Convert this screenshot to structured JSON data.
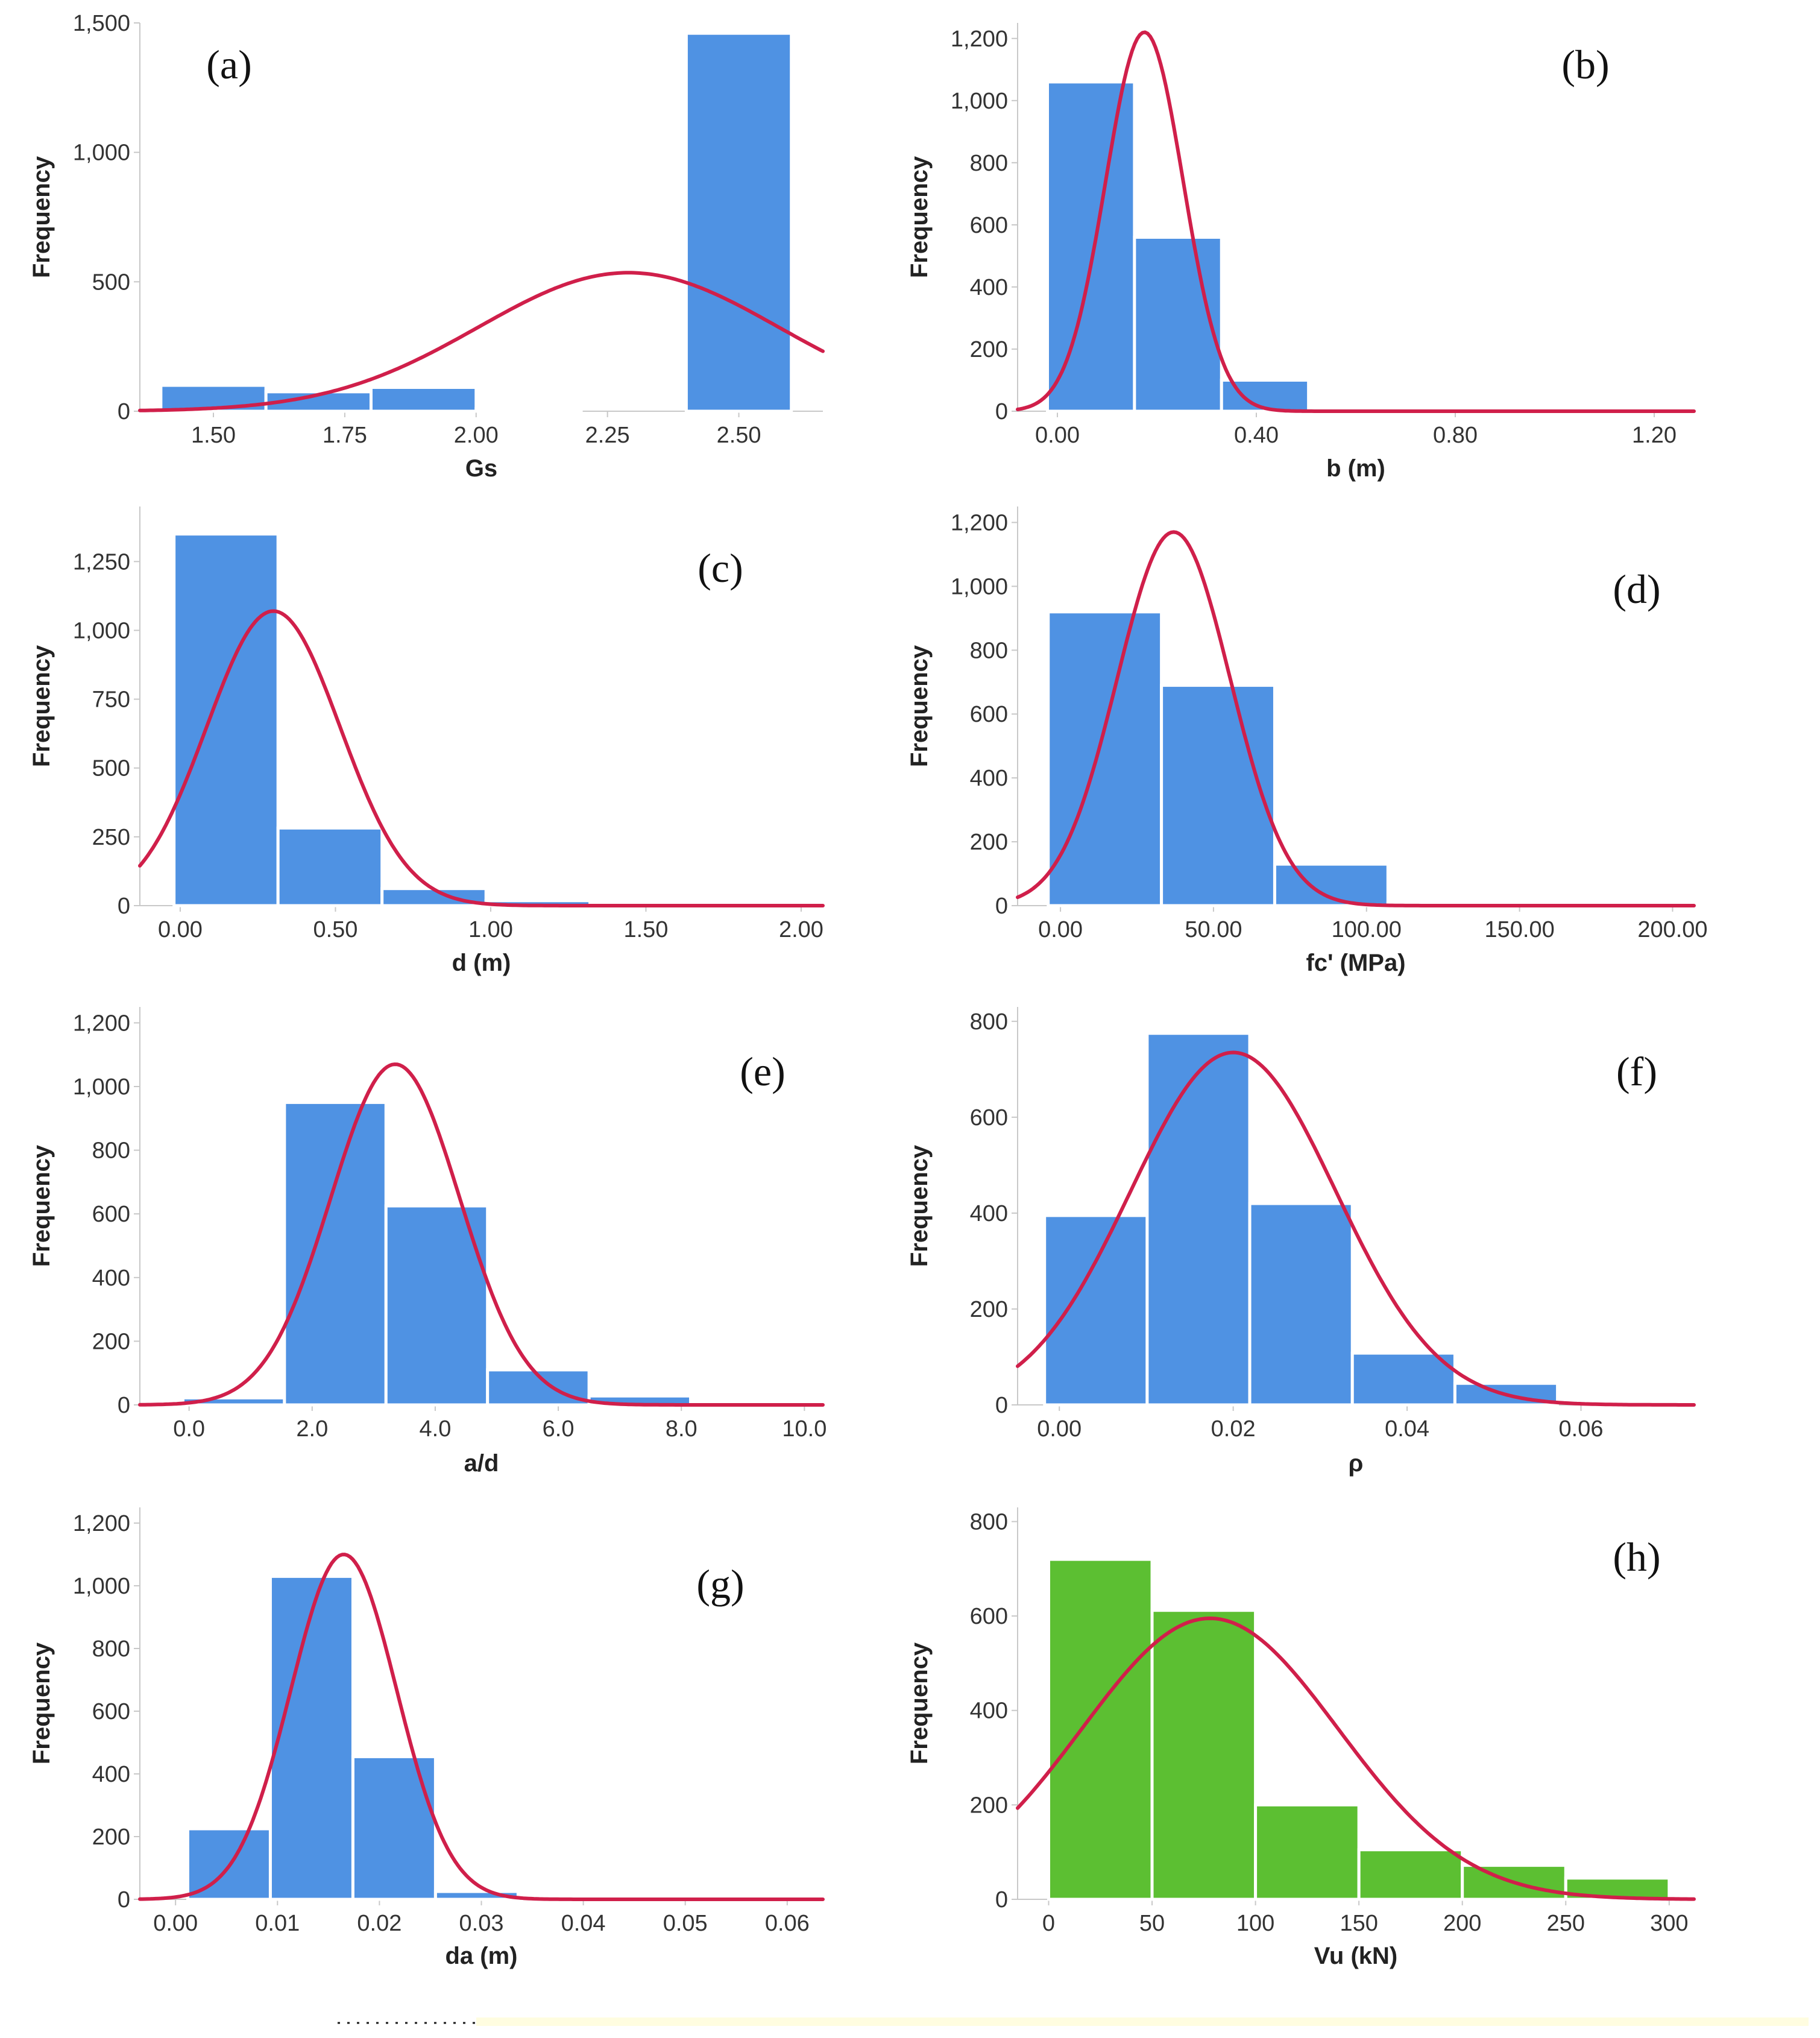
{
  "colors": {
    "bar_blue": "#4f92e3",
    "bar_green": "#5cbf32",
    "curve": "#d01f4a",
    "axis": "#c8c8c8",
    "footer_line": "#fffde0"
  },
  "chart_data": [
    {
      "id": "a",
      "type": "bar",
      "panel_label": "(a)",
      "xlabel": "Gs",
      "ylabel": "Frequency",
      "xlim": [
        1.36,
        2.66
      ],
      "ylim": [
        0,
        1500
      ],
      "xticks": [
        1.5,
        1.75,
        2.0,
        2.25,
        2.5
      ],
      "xtick_labels": [
        "1.50",
        "1.75",
        "2.00",
        "2.25",
        "2.50"
      ],
      "yticks": [
        0,
        500,
        1000,
        1500
      ],
      "ytick_labels": [
        "0",
        "500",
        "1,000",
        "1,500"
      ],
      "bins": [
        [
          1.4,
          1.6
        ],
        [
          1.6,
          1.8
        ],
        [
          1.8,
          2.0
        ],
        [
          2.0,
          2.2
        ],
        [
          2.2,
          2.4
        ],
        [
          2.4,
          2.6
        ]
      ],
      "values": [
        100,
        75,
        92,
        10,
        0,
        1460
      ],
      "normal_curve": {
        "mean": 2.29,
        "sd": 0.286,
        "peak": 535
      }
    },
    {
      "id": "b",
      "type": "bar",
      "panel_label": "(b)",
      "xlabel": "b (m)",
      "ylabel": "Frequency",
      "xlim": [
        -0.08,
        1.28
      ],
      "ylim": [
        0,
        1250
      ],
      "xticks": [
        0.0,
        0.4,
        0.8,
        1.2
      ],
      "xtick_labels": [
        "0.00",
        "0.40",
        "0.80",
        "1.20"
      ],
      "yticks": [
        0,
        200,
        400,
        600,
        800,
        1000,
        1200
      ],
      "ytick_labels": [
        "0",
        "200",
        "400",
        "600",
        "800",
        "1,000",
        "1,200"
      ],
      "bins": [
        [
          -0.02,
          0.155
        ],
        [
          0.155,
          0.33
        ],
        [
          0.33,
          0.505
        ]
      ],
      "values": [
        1060,
        560,
        100
      ],
      "normal_curve": {
        "mean": 0.175,
        "sd": 0.078,
        "peak": 1220
      }
    },
    {
      "id": "c",
      "type": "bar",
      "panel_label": "(c)",
      "xlabel": "d (m)",
      "ylabel": "Frequency",
      "xlim": [
        -0.13,
        2.07
      ],
      "ylim": [
        0,
        1450
      ],
      "xticks": [
        0.0,
        0.5,
        1.0,
        1.5,
        2.0
      ],
      "xtick_labels": [
        "0.00",
        "0.50",
        "1.00",
        "1.50",
        "2.00"
      ],
      "yticks": [
        0,
        250,
        500,
        750,
        1000,
        1250
      ],
      "ytick_labels": [
        "0",
        "250",
        "500",
        "750",
        "1,000",
        "1,250"
      ],
      "bins": [
        [
          -0.02,
          0.315
        ],
        [
          0.315,
          0.65
        ],
        [
          0.65,
          0.985
        ],
        [
          0.985,
          1.32
        ],
        [
          1.32,
          1.655
        ]
      ],
      "values": [
        1350,
        282,
        62,
        18,
        12
      ],
      "normal_curve": {
        "mean": 0.3,
        "sd": 0.215,
        "peak": 1070
      }
    },
    {
      "id": "d",
      "type": "bar",
      "panel_label": "(d)",
      "xlabel": "fc' (MPa)",
      "ylabel": "Frequency",
      "xlim": [
        -14,
        207
      ],
      "ylim": [
        0,
        1250
      ],
      "xticks": [
        0,
        50,
        100,
        150,
        200
      ],
      "xtick_labels": [
        "0.00",
        "50.00",
        "100.00",
        "150.00",
        "200.00"
      ],
      "yticks": [
        0,
        200,
        400,
        600,
        800,
        1000,
        1200
      ],
      "ytick_labels": [
        "0",
        "200",
        "400",
        "600",
        "800",
        "1,000",
        "1,200"
      ],
      "bins": [
        [
          -4,
          33
        ],
        [
          33,
          70
        ],
        [
          70,
          107
        ],
        [
          107,
          144
        ]
      ],
      "values": [
        920,
        690,
        130,
        8
      ],
      "normal_curve": {
        "mean": 37,
        "sd": 18.5,
        "peak": 1170
      }
    },
    {
      "id": "e",
      "type": "bar",
      "panel_label": "(e)",
      "xlabel": "a/d",
      "ylabel": "Frequency",
      "xlim": [
        -0.8,
        10.3
      ],
      "ylim": [
        0,
        1250
      ],
      "xticks": [
        0,
        2,
        4,
        6,
        8,
        10
      ],
      "xtick_labels": [
        "0.0",
        "2.0",
        "4.0",
        "6.0",
        "8.0",
        "10.0"
      ],
      "yticks": [
        0,
        200,
        400,
        600,
        800,
        1000,
        1200
      ],
      "ytick_labels": [
        "0",
        "200",
        "400",
        "600",
        "800",
        "1,000",
        "1,200"
      ],
      "bins": [
        [
          -0.1,
          1.55
        ],
        [
          1.55,
          3.2
        ],
        [
          3.2,
          4.85
        ],
        [
          4.85,
          6.5
        ],
        [
          6.5,
          8.15
        ]
      ],
      "values": [
        22,
        950,
        625,
        110,
        28
      ],
      "normal_curve": {
        "mean": 3.35,
        "sd": 1.05,
        "peak": 1070
      }
    },
    {
      "id": "f",
      "type": "bar",
      "panel_label": "(f)",
      "xlabel": "ρ",
      "ylabel": "Frequency",
      "xlim": [
        -0.0048,
        0.073
      ],
      "ylim": [
        0,
        830
      ],
      "xticks": [
        0.0,
        0.02,
        0.04,
        0.06
      ],
      "xtick_labels": [
        "0.00",
        "0.02",
        "0.04",
        "0.06"
      ],
      "bins": [
        [
          -0.0017,
          0.0101
        ],
        [
          0.0101,
          0.0219
        ],
        [
          0.0219,
          0.0337
        ],
        [
          0.0337,
          0.0455
        ],
        [
          0.0455,
          0.0573
        ]
      ],
      "yticks": [
        0,
        200,
        400,
        600,
        800
      ],
      "ytick_labels": [
        "0",
        "200",
        "400",
        "600",
        "800"
      ],
      "values": [
        395,
        775,
        420,
        108,
        45
      ],
      "normal_curve": {
        "mean": 0.02,
        "sd": 0.0118,
        "peak": 735
      }
    },
    {
      "id": "g",
      "type": "bar",
      "panel_label": "(g)",
      "xlabel": "da (m)",
      "ylabel": "Frequency",
      "xlim": [
        -0.0035,
        0.0635
      ],
      "ylim": [
        0,
        1250
      ],
      "xticks": [
        0.0,
        0.01,
        0.02,
        0.03,
        0.04,
        0.05,
        0.06
      ],
      "xtick_labels": [
        "0.00",
        "0.01",
        "0.02",
        "0.03",
        "0.04",
        "0.05",
        "0.06"
      ],
      "yticks": [
        0,
        200,
        400,
        600,
        800,
        1000,
        1200
      ],
      "ytick_labels": [
        "0",
        "200",
        "400",
        "600",
        "800",
        "1,000",
        "1,200"
      ],
      "bins": [
        [
          0.0012,
          0.0093
        ],
        [
          0.0093,
          0.0174
        ],
        [
          0.0174,
          0.0255
        ],
        [
          0.0255,
          0.0336
        ]
      ],
      "values": [
        225,
        1030,
        455,
        25
      ],
      "normal_curve": {
        "mean": 0.0165,
        "sd": 0.0052,
        "peak": 1100
      }
    },
    {
      "id": "h",
      "type": "bar",
      "panel_label": "(h)",
      "xlabel": "Vu (kN)",
      "ylabel": "Frequency",
      "xlim": [
        -15,
        312
      ],
      "ylim": [
        0,
        830
      ],
      "xticks": [
        0,
        50,
        100,
        150,
        200,
        250,
        300
      ],
      "xtick_labels": [
        "0",
        "50",
        "100",
        "150",
        "200",
        "250",
        "300"
      ],
      "yticks": [
        0,
        200,
        400,
        600,
        800
      ],
      "ytick_labels": [
        "0",
        "200",
        "400",
        "600",
        "800"
      ],
      "bins": [
        [
          0,
          50
        ],
        [
          50,
          100
        ],
        [
          100,
          150
        ],
        [
          150,
          200
        ],
        [
          200,
          250
        ],
        [
          250,
          300
        ]
      ],
      "values": [
        720,
        612,
        200,
        105,
        72,
        45
      ],
      "normal_curve": {
        "mean": 78,
        "sd": 62,
        "peak": 595
      },
      "bar_color": "green"
    }
  ]
}
